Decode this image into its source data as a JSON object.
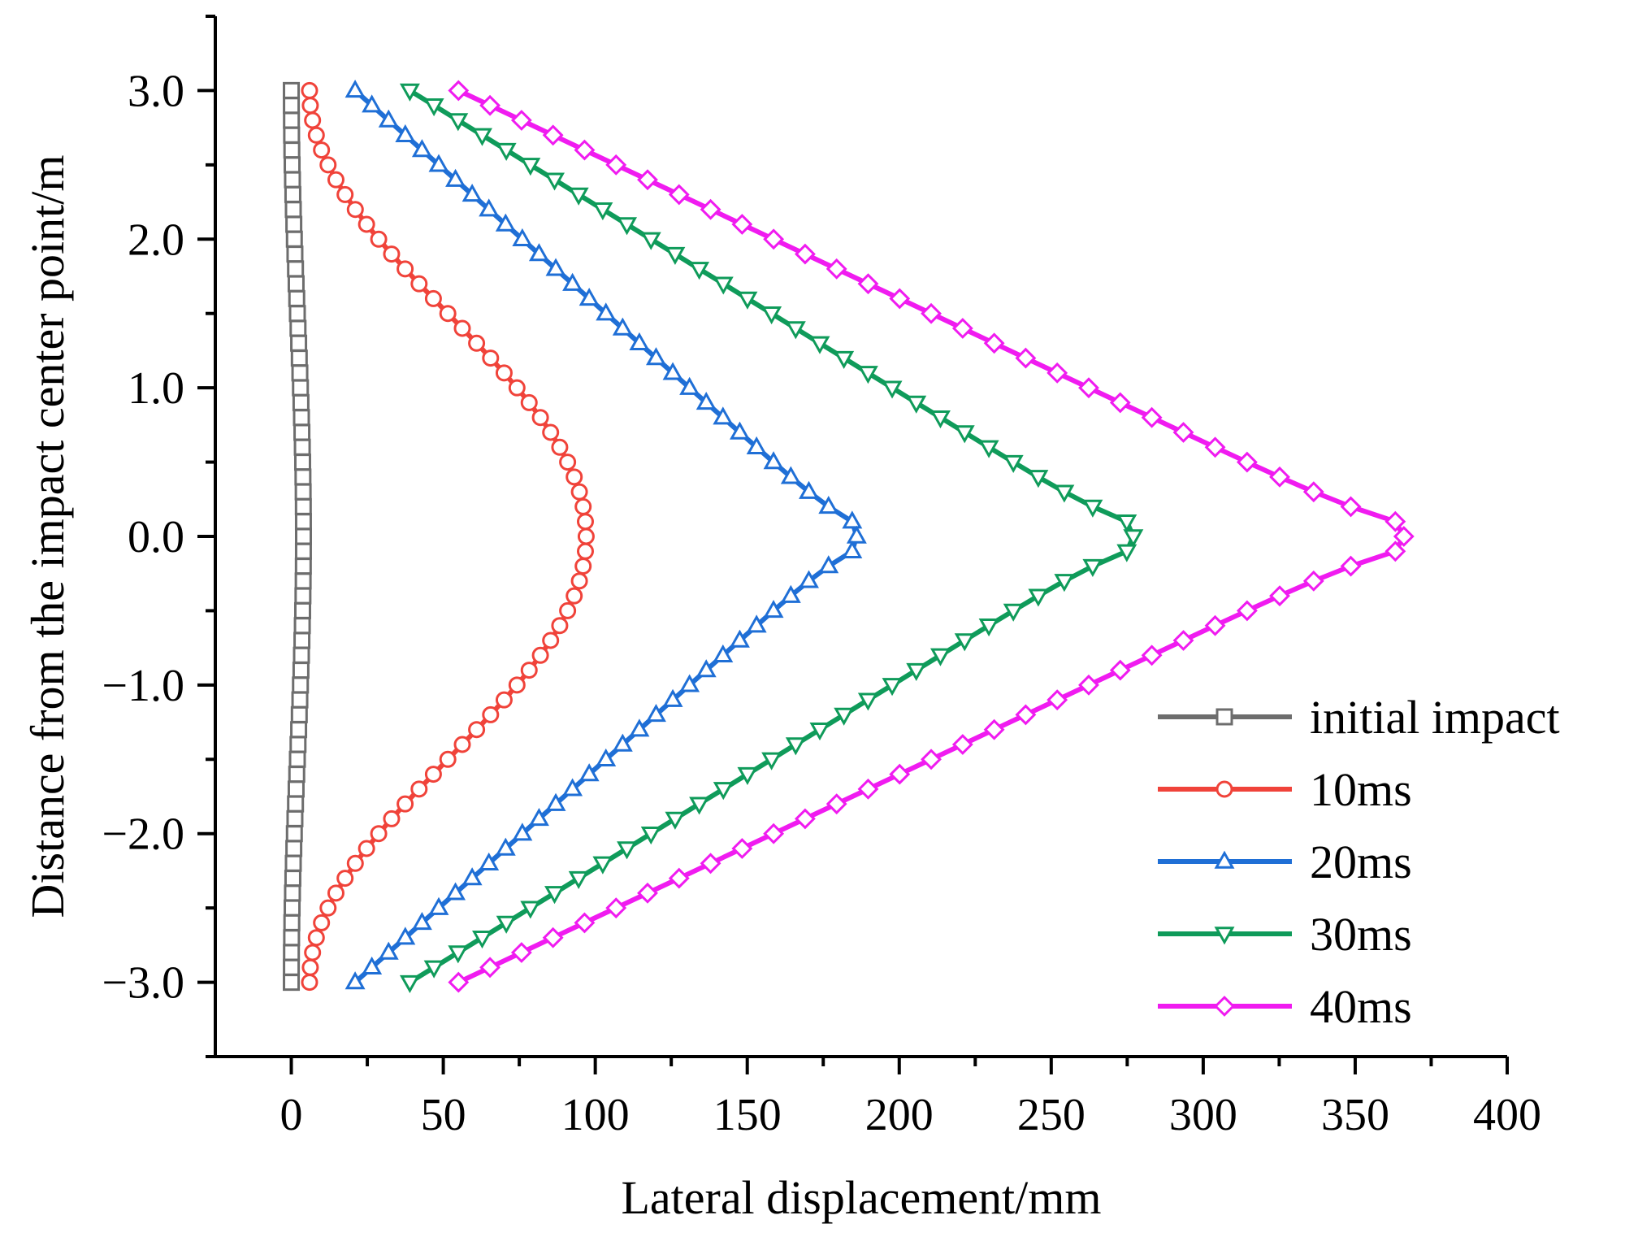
{
  "chart_data": {
    "type": "line",
    "title": "",
    "xlabel": "Lateral displacement/mm",
    "ylabel": "Distance from the impact center point/m",
    "xlim": [
      -25,
      400
    ],
    "ylim": [
      -3.5,
      3.5
    ],
    "xticks": [
      0,
      50,
      100,
      150,
      200,
      250,
      300,
      350,
      400
    ],
    "xtick_labels": [
      "0",
      "50",
      "100",
      "150",
      "200",
      "250",
      "300",
      "350",
      "400"
    ],
    "yticks": [
      -3.0,
      -2.0,
      -1.0,
      0.0,
      1.0,
      2.0,
      3.0
    ],
    "ytick_labels": [
      "−3.0",
      "−2.0",
      "−1.0",
      "0.0",
      "1.0",
      "2.0",
      "3.0"
    ],
    "grid": false,
    "legend_position": "bottom-right",
    "series": [
      {
        "name": "initial impact",
        "color": "#6d6d6d",
        "marker": "square",
        "peak": 4,
        "base": 0,
        "shape": "cosine"
      },
      {
        "name": "10ms",
        "color": "#f0433a",
        "marker": "circle",
        "peak": 97,
        "base": 6,
        "shape": "cosine"
      },
      {
        "name": "20ms",
        "color": "#1f6fd6",
        "marker": "triangle-up",
        "peak": 186,
        "base": 21,
        "shape": "linear-rounded"
      },
      {
        "name": "30ms",
        "color": "#0f9b5a",
        "marker": "triangle-down",
        "peak": 277,
        "base": 39,
        "shape": "linear-rounded"
      },
      {
        "name": "40ms",
        "color": "#f01bf0",
        "marker": "diamond",
        "peak": 366,
        "base": 55,
        "shape": "linear-rounded"
      }
    ],
    "y_sample_step": 0.1
  }
}
